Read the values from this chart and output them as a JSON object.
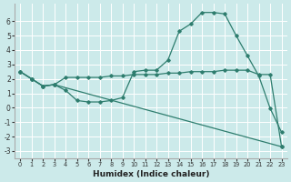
{
  "xlabel": "Humidex (Indice chaleur)",
  "bg_color": "#cceaea",
  "grid_color": "#ffffff",
  "line_color": "#2e7d6e",
  "line1_x": [
    0,
    1,
    2,
    3,
    4,
    5,
    6,
    7,
    8,
    9,
    10,
    11,
    12,
    13,
    14,
    15,
    16,
    17,
    18,
    19,
    20,
    21,
    22,
    23
  ],
  "line1_y": [
    2.5,
    2.0,
    1.5,
    1.6,
    1.2,
    0.5,
    0.4,
    0.4,
    0.5,
    0.7,
    2.5,
    2.6,
    2.6,
    3.3,
    5.3,
    5.8,
    6.6,
    6.6,
    6.5,
    5.0,
    3.6,
    2.2,
    -0.05,
    -1.7
  ],
  "line2_x": [
    0,
    1,
    2,
    3,
    4,
    5,
    6,
    7,
    8,
    9,
    10,
    11,
    12,
    13,
    14,
    15,
    16,
    17,
    18,
    19,
    20,
    21,
    22,
    23
  ],
  "line2_y": [
    2.5,
    2.0,
    1.5,
    1.6,
    2.1,
    2.1,
    2.1,
    2.1,
    2.2,
    2.2,
    2.3,
    2.3,
    2.3,
    2.4,
    2.4,
    2.5,
    2.5,
    2.5,
    2.6,
    2.6,
    2.6,
    2.3,
    2.3,
    -2.7
  ],
  "line3_x": [
    0,
    1,
    2,
    3,
    23
  ],
  "line3_y": [
    2.5,
    2.0,
    1.5,
    1.6,
    -2.7
  ],
  "ylim": [
    -3.5,
    7.2
  ],
  "xlim": [
    -0.5,
    23.5
  ],
  "yticks": [
    -3,
    -2,
    -1,
    0,
    1,
    2,
    3,
    4,
    5,
    6
  ],
  "xticks": [
    0,
    1,
    2,
    3,
    4,
    5,
    6,
    7,
    8,
    9,
    10,
    11,
    12,
    13,
    14,
    15,
    16,
    17,
    18,
    19,
    20,
    21,
    22,
    23
  ]
}
